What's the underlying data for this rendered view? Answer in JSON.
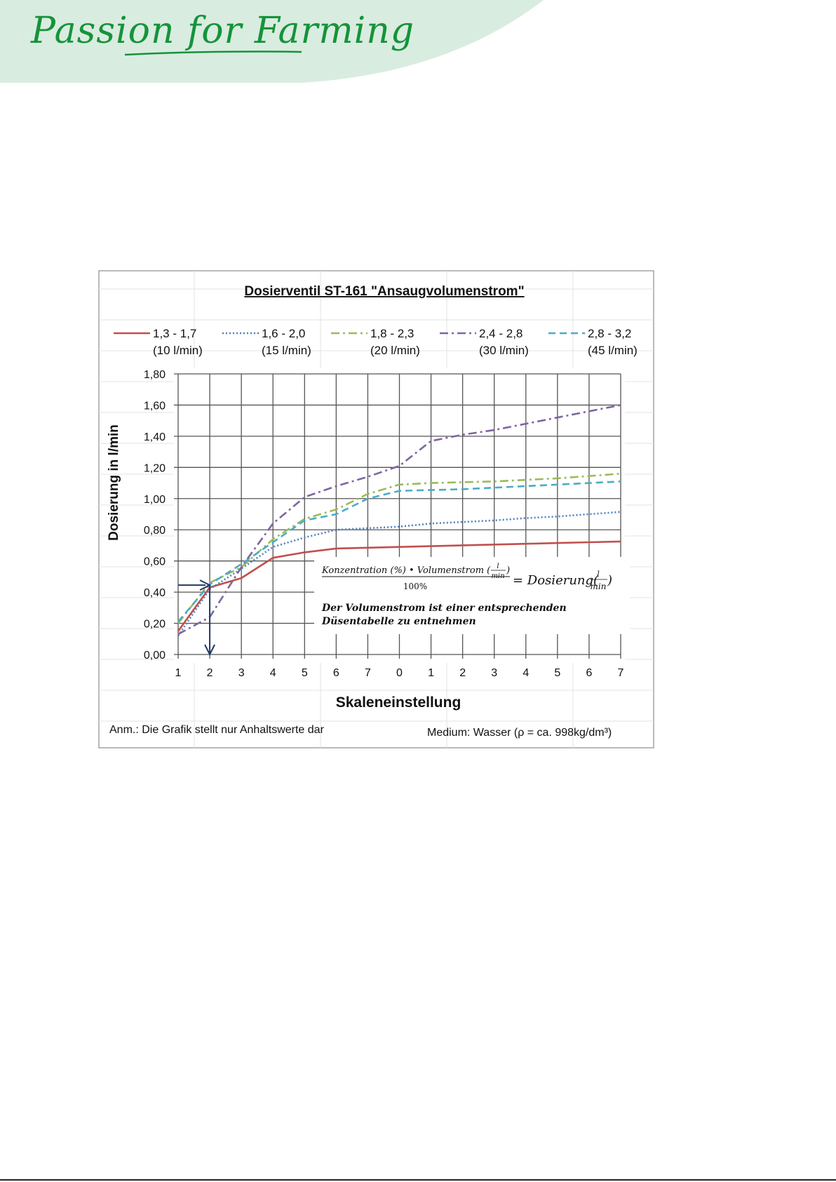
{
  "brand": {
    "logo_text": "Passion for Farming",
    "band_color": "#d9ece0",
    "logo_color": "#15933a"
  },
  "chart_data": {
    "type": "line",
    "title": "Dosierventil ST-161 \"Ansaugvolumenstrom\"",
    "xlabel": "Skaleneinstellung",
    "ylabel": "Dosierung in l/min",
    "categories": [
      "1",
      "2",
      "3",
      "4",
      "5",
      "6",
      "7",
      "0",
      "1",
      "2",
      "3",
      "4",
      "5",
      "6",
      "7"
    ],
    "y_ticks": [
      "1,80",
      "1,60",
      "1,40",
      "1,20",
      "1,00",
      "0,80",
      "0,60",
      "0,40",
      "0,20",
      "0,00"
    ],
    "ylim": [
      0,
      1.8
    ],
    "grid": true,
    "legend_position": "top",
    "series": [
      {
        "name": "1,3 - 1,7",
        "sub": "(10 l/min)",
        "color": "#c0504d",
        "dash": "",
        "values": [
          0.15,
          0.43,
          0.49,
          0.62,
          0.655,
          0.68,
          0.685,
          0.69,
          0.695,
          0.7,
          0.705,
          0.71,
          0.715,
          0.72,
          0.725
        ]
      },
      {
        "name": "1,6 - 2,0",
        "sub": "(15 l/min)",
        "color": "#4f81bd",
        "dash": "2,3",
        "values": [
          0.12,
          0.42,
          0.55,
          0.69,
          0.75,
          0.8,
          0.81,
          0.82,
          0.84,
          0.85,
          0.86,
          0.875,
          0.885,
          0.9,
          0.915
        ]
      },
      {
        "name": "1,8 - 2,3",
        "sub": "(20 l/min)",
        "color": "#9bbb59",
        "dash": "12,5,3,5",
        "values": [
          0.2,
          0.46,
          0.56,
          0.74,
          0.87,
          0.93,
          1.03,
          1.09,
          1.1,
          1.105,
          1.11,
          1.12,
          1.13,
          1.145,
          1.16
        ]
      },
      {
        "name": "2,4 - 2,8",
        "sub": "(30 l/min)",
        "color": "#8064a2",
        "dash": "12,5,3,5",
        "values": [
          0.13,
          0.24,
          0.56,
          0.84,
          1.01,
          1.08,
          1.14,
          1.21,
          1.37,
          1.41,
          1.44,
          1.48,
          1.52,
          1.56,
          1.6
        ]
      },
      {
        "name": "2,8 - 3,2",
        "sub": "(45 l/min)",
        "color": "#4bacc6",
        "dash": "10,6",
        "values": [
          0.21,
          0.45,
          0.58,
          0.72,
          0.86,
          0.9,
          1.0,
          1.05,
          1.055,
          1.06,
          1.07,
          1.08,
          1.09,
          1.1,
          1.11
        ]
      }
    ],
    "annotations": {
      "formula_left": "Konzentration (%) • Volumenstrom (",
      "formula_unit_num": "l",
      "formula_unit_den": "min",
      "formula_close": ")",
      "formula_denominator": "100%",
      "formula_right": "= Dosierung(",
      "formula_right_close": ")",
      "note_line1": "Der Volumenstrom ist einer entsprechenden",
      "note_line2": "Düsentabelle zu entnehmen",
      "footnote_left": "Anm.:  Die Grafik stellt nur Anhaltswerte dar",
      "footnote_right": "Medium:  Wasser (ρ = ca. 998kg/dm³)"
    },
    "reading_example": {
      "x_category_index": 1,
      "y_value": 0.445,
      "arrow_color": "#1f3a68"
    }
  }
}
